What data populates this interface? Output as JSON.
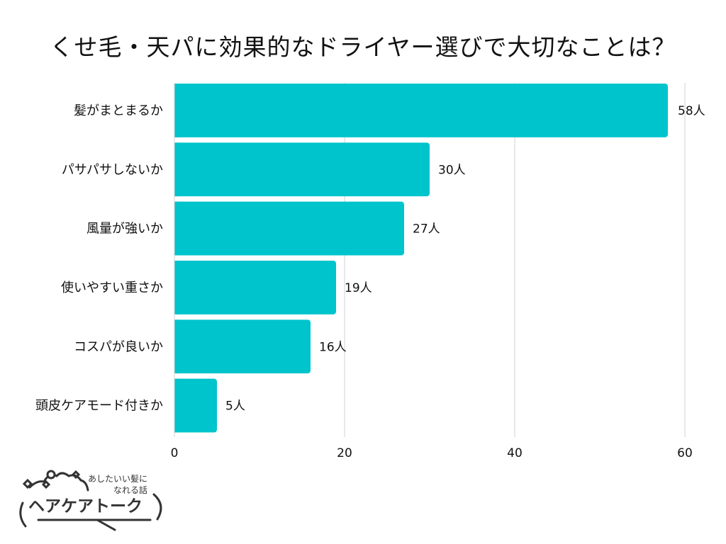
{
  "chart_data": {
    "type": "bar",
    "orientation": "horizontal",
    "title": "くせ毛・天パに効果的なドライヤー選びで大切なことは？",
    "categories": [
      "髪がまとまるか",
      "パサパサしないか",
      "風量が強いか",
      "使いやすい重さか",
      "コスパが良いか",
      "頭皮ケアモード付きか"
    ],
    "values": [
      58,
      30,
      27,
      19,
      16,
      5
    ],
    "value_suffix": "人",
    "xlim": [
      0,
      60
    ],
    "xticks": [
      0,
      20,
      40,
      60
    ],
    "grid": true,
    "bar_color": "#00c4cc",
    "xlabel": "",
    "ylabel": ""
  },
  "logo": {
    "tagline_line1": "あしたいい髪に",
    "tagline_line2": "なれる話",
    "name": "ヘアケアトーク"
  }
}
